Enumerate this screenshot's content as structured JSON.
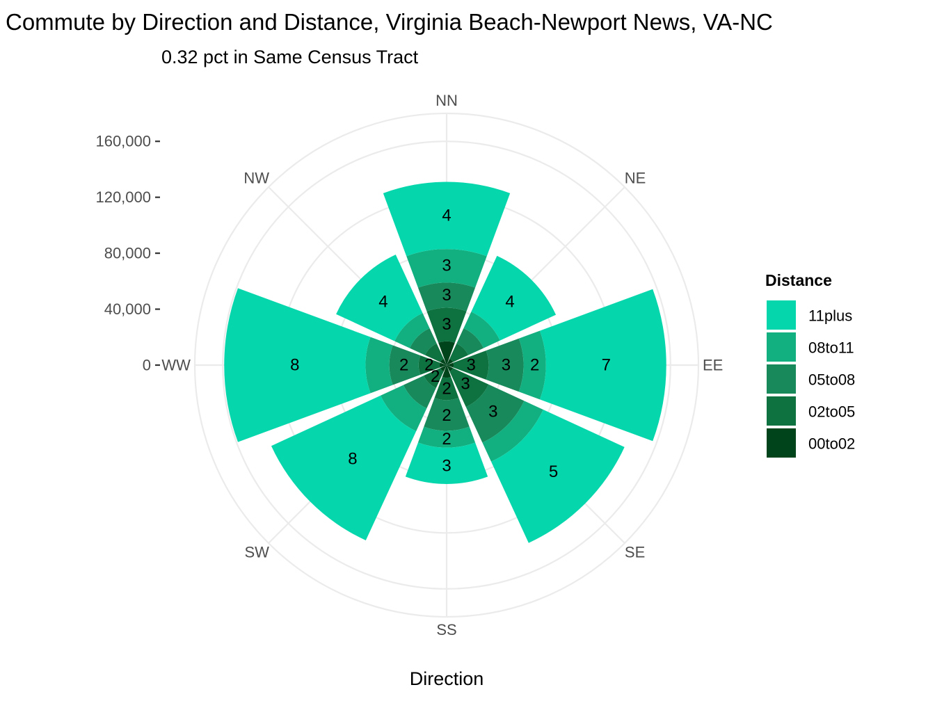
{
  "chart_data": {
    "type": "polar-stacked-bar",
    "title": "Commute by Direction and Distance, Virginia Beach-Newport News, VA-NC",
    "subtitle": "0.32 pct in Same Census Tract",
    "xlabel": "Direction",
    "ylabel": "",
    "directions": [
      "NN",
      "NE",
      "EE",
      "SE",
      "SS",
      "SW",
      "WW",
      "NW"
    ],
    "y_ticks": [
      0,
      40000,
      80000,
      120000,
      160000
    ],
    "y_tick_labels": [
      "0",
      "40,000",
      "80,000",
      "120,000",
      "160,000"
    ],
    "ylim": [
      0,
      180000
    ],
    "grid": true,
    "legend": {
      "title": "Distance",
      "position": "right",
      "entries": [
        "11plus",
        "08to11",
        "05to08",
        "02to05",
        "00to02"
      ]
    },
    "series": [
      {
        "name": "00to02",
        "color": "#00441b",
        "values": [
          17000,
          5000,
          5000,
          5000,
          9000,
          5000,
          5000,
          5000
        ],
        "labels": [
          "",
          "",
          "",
          "",
          "",
          "",
          "",
          ""
        ]
      },
      {
        "name": "02to05",
        "color": "#0d7240",
        "values": [
          24000,
          12000,
          25000,
          28000,
          16000,
          13000,
          15000,
          12000
        ],
        "labels": [
          "3",
          "",
          "3",
          "3",
          "2",
          "2",
          "2",
          ""
        ]
      },
      {
        "name": "05to08",
        "color": "#17895b",
        "values": [
          18000,
          12000,
          25000,
          28000,
          22000,
          16000,
          21000,
          12000
        ],
        "labels": [
          "3",
          "",
          "3",
          "3",
          "2",
          "",
          "2",
          ""
        ]
      },
      {
        "name": "08to11",
        "color": "#12b080",
        "values": [
          24000,
          13000,
          16000,
          15000,
          12000,
          18000,
          17000,
          12000
        ],
        "labels": [
          "3",
          "",
          "2",
          "",
          "2",
          "",
          "",
          ""
        ]
      },
      {
        "name": "11plus",
        "color": "#06d6ac",
        "values": [
          48000,
          44000,
          86000,
          64000,
          26000,
          86000,
          101000,
          46000
        ],
        "labels": [
          "4",
          "4",
          "7",
          "5",
          "3",
          "8",
          "8",
          "4"
        ]
      }
    ]
  }
}
